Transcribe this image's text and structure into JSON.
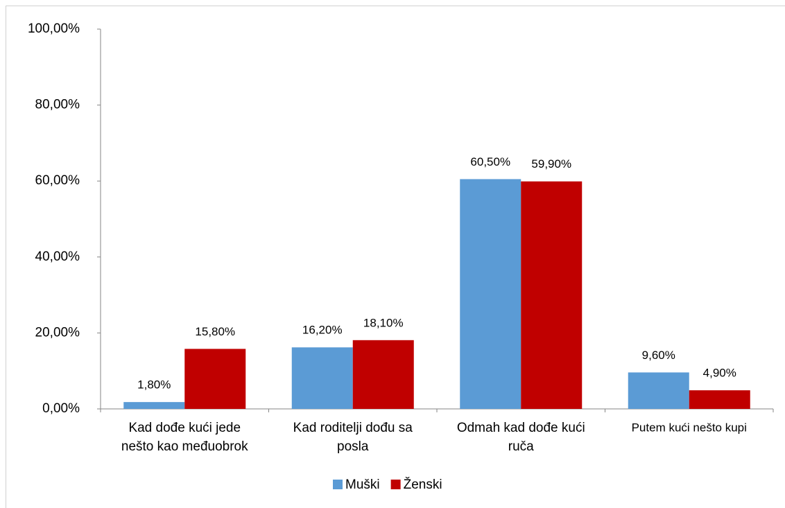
{
  "chart_data": {
    "type": "bar",
    "categories": [
      "Kad dođe kući jede\nnešto kao međuobrok",
      "Kad roditelji dođu sa\nposla",
      "Odmah kad dođe kući\nruča",
      "Putem kući  nešto kupi"
    ],
    "series": [
      {
        "name": "Muški",
        "color": "#5b9bd5",
        "values": [
          1.8,
          16.2,
          60.5,
          9.6
        ],
        "value_labels": [
          "1,80%",
          "16,20%",
          "60,50%",
          "9,60%"
        ]
      },
      {
        "name": "Ženski",
        "color": "#c00000",
        "values": [
          15.8,
          18.1,
          59.9,
          4.9
        ],
        "value_labels": [
          "15,80%",
          "18,10%",
          "59,90%",
          "4,90%"
        ]
      }
    ],
    "ylim": [
      0,
      100
    ],
    "yticks": [
      {
        "value": 0,
        "label": "0,00%"
      },
      {
        "value": 20,
        "label": "20,00%"
      },
      {
        "value": 40,
        "label": "40,00%"
      },
      {
        "value": 60,
        "label": "60,00%"
      },
      {
        "value": 80,
        "label": "80,00%"
      },
      {
        "value": 100,
        "label": "100,00%"
      }
    ],
    "grid": false,
    "legend": "bottom"
  }
}
